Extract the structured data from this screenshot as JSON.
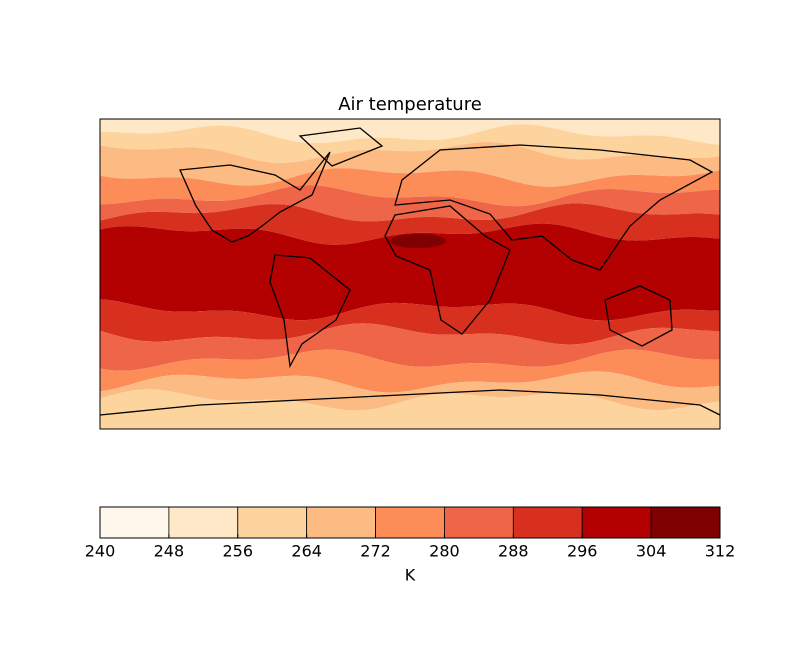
{
  "chart_data": {
    "type": "filled-contour-map",
    "title": "Air temperature",
    "colorbar": {
      "levels": [
        240,
        248,
        256,
        264,
        272,
        280,
        288,
        296,
        304,
        312
      ],
      "colors": [
        "#fff7ec",
        "#fee8c8",
        "#fdd49e",
        "#fdbb84",
        "#fc8d59",
        "#ef6548",
        "#d7301f",
        "#b30000",
        "#7f0000"
      ],
      "label": "K"
    }
  }
}
